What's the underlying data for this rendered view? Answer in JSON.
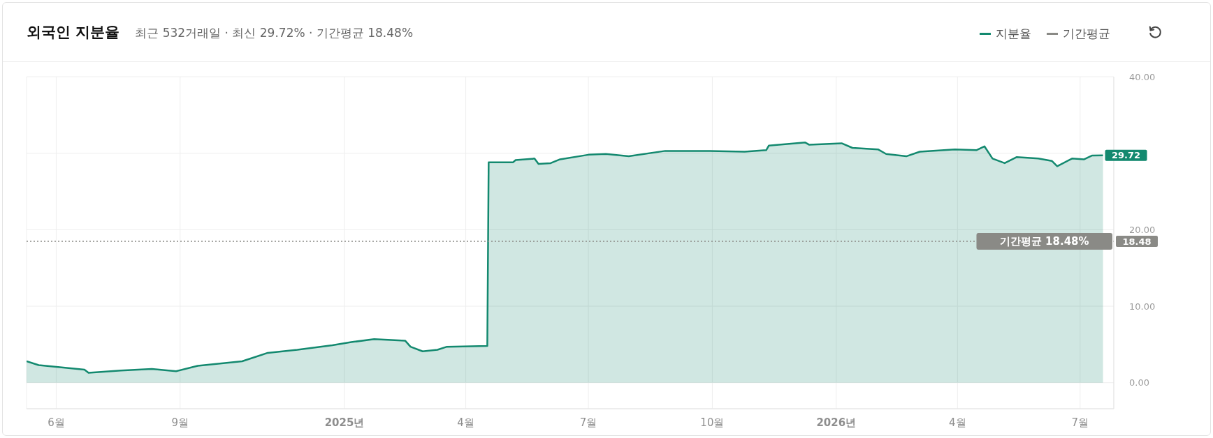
{
  "chart_data": {
    "type": "area",
    "title": "외국인 지분율",
    "subtitle": "최근 532거래일 · 최신 29.72% · 기간평균 18.48%",
    "xlim": [
      "2024-05-10",
      "2026-07-26"
    ],
    "xticks": [
      {
        "value": "2024-06-01",
        "label": "6월"
      },
      {
        "value": "2024-09-01",
        "label": "9월"
      },
      {
        "value": "2025-01-01",
        "label": "2025년"
      },
      {
        "value": "2025-04-01",
        "label": "4월"
      },
      {
        "value": "2025-07-01",
        "label": "7월"
      },
      {
        "value": "2025-10-01",
        "label": "10월"
      },
      {
        "value": "2026-01-01",
        "label": "2026년"
      },
      {
        "value": "2026-04-01",
        "label": "4월"
      },
      {
        "value": "2026-07-01",
        "label": "7월"
      }
    ],
    "ylim": [
      -3.4,
      40
    ],
    "yticks": [
      {
        "value": 0,
        "label": "0.00"
      },
      {
        "value": 10,
        "label": "10.00"
      },
      {
        "value": 20,
        "label": "20.00"
      },
      {
        "value": 30,
        "label": null
      },
      {
        "value": 40,
        "label": "40.00"
      }
    ],
    "grid": true,
    "legend": "top right",
    "marker": "none",
    "series": [
      {
        "name": "지분율",
        "color": "#13896f",
        "x": [
          "2024-05-10",
          "2024-05-19",
          "2024-06-22",
          "2024-06-25",
          "2024-07-19",
          "2024-08-11",
          "2024-08-29",
          "2024-09-14",
          "2024-10-17",
          "2024-11-05",
          "2024-11-27",
          "2024-12-23",
          "2025-01-06",
          "2025-01-23",
          "2025-02-15",
          "2025-02-19",
          "2025-02-28",
          "2025-03-11",
          "2025-03-18",
          "2025-04-17",
          "2025-04-18",
          "2025-05-06",
          "2025-05-08",
          "2025-05-22",
          "2025-05-25",
          "2025-06-03",
          "2025-06-10",
          "2025-07-01",
          "2025-07-14",
          "2025-07-31",
          "2025-08-27",
          "2025-09-29",
          "2025-10-25",
          "2025-11-10",
          "2025-11-12",
          "2025-12-09",
          "2025-12-12",
          "2026-01-05",
          "2026-01-13",
          "2026-02-01",
          "2026-02-07",
          "2026-02-22",
          "2026-03-04",
          "2026-03-22",
          "2026-03-30",
          "2026-04-15",
          "2026-04-21",
          "2026-04-27",
          "2026-05-06",
          "2026-05-15",
          "2026-05-31",
          "2026-06-10",
          "2026-06-14",
          "2026-06-25",
          "2026-07-04",
          "2026-07-10",
          "2026-07-18"
        ],
        "values": [
          2.8,
          2.3,
          1.7,
          1.3,
          1.6,
          1.8,
          1.5,
          2.2,
          2.8,
          3.9,
          4.3,
          4.9,
          5.3,
          5.7,
          5.5,
          4.7,
          4.1,
          4.3,
          4.7,
          4.8,
          28.8,
          28.8,
          29.1,
          29.3,
          28.6,
          28.7,
          29.2,
          29.8,
          29.9,
          29.6,
          30.3,
          30.3,
          30.2,
          30.4,
          31.0,
          31.4,
          31.1,
          31.3,
          30.7,
          30.5,
          29.9,
          29.6,
          30.2,
          30.4,
          30.5,
          30.4,
          30.9,
          29.3,
          28.7,
          29.5,
          29.3,
          29.0,
          28.3,
          29.3,
          29.2,
          29.7,
          29.72
        ],
        "value_labels": [
          null,
          null,
          null,
          null,
          null,
          null,
          null,
          null,
          null,
          null,
          null,
          null,
          null,
          null,
          null,
          null,
          null,
          null,
          null,
          null,
          null,
          null,
          null,
          null,
          null,
          null,
          null,
          null,
          null,
          null,
          null,
          null,
          null,
          null,
          null,
          null,
          null,
          null,
          null,
          null,
          null,
          null,
          null,
          null,
          null,
          null,
          null,
          null,
          null,
          null,
          null,
          null,
          null,
          null,
          null,
          null,
          "29.72"
        ]
      },
      {
        "name": "기간평균",
        "type": "line",
        "color": "#8a8a86",
        "line_style": "dotted",
        "x": [
          "2024-05-10",
          "2026-07-26"
        ],
        "values": [
          18.48,
          18.48
        ],
        "value_labels": [
          null,
          "18.48"
        ]
      }
    ],
    "annotations": [
      {
        "text": "기간평균 18.48%",
        "x": "2026-04-13",
        "y": 18.48
      }
    ]
  }
}
